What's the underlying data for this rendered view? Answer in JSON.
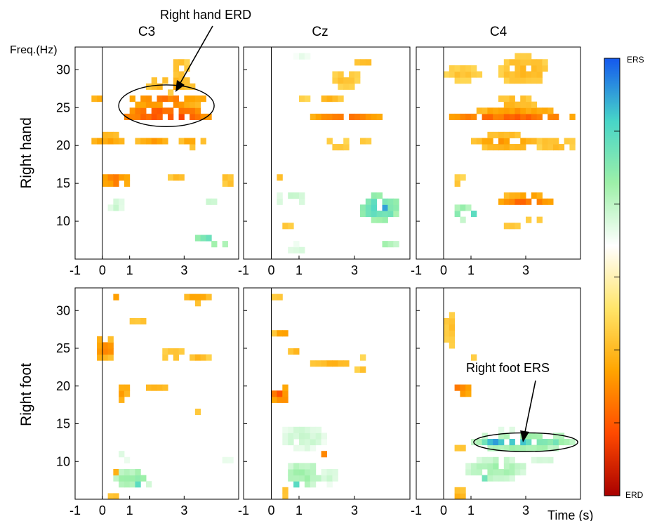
{
  "chart_data": {
    "type": "heatmap",
    "columns": [
      "C3",
      "Cz",
      "C4"
    ],
    "rows": [
      "Right hand",
      "Right foot"
    ],
    "freq_label": "Freq.(Hz)",
    "time_label": "Time (s)",
    "x_ticks": [
      "-1",
      "0",
      "1",
      "3"
    ],
    "y_ticks": [
      "30",
      "25",
      "20",
      "15",
      "10"
    ],
    "xlim": [
      -1,
      5
    ],
    "ylim": [
      5,
      33
    ],
    "event_time": 0,
    "colorbar": {
      "top_label": "ERS",
      "bottom_label": "ERD",
      "colors": [
        "#a80000",
        "#ff4a00",
        "#ffa400",
        "#ffe56a",
        "#ffffff",
        "#9df0a8",
        "#47d5c8",
        "#1458ee"
      ]
    },
    "annotations": [
      {
        "text": "Right hand ERD",
        "panel": "Right hand / C3",
        "time": 2.3,
        "freq": 25,
        "time_span": [
          0.6,
          4.1
        ],
        "freq_span": [
          22.5,
          28
        ]
      },
      {
        "text": "Right foot ERS",
        "panel": "Right foot / C4",
        "time": 3,
        "freq": 12.5,
        "time_span": [
          1.1,
          4.9
        ],
        "freq_span": [
          11.3,
          13.8
        ]
      }
    ],
    "panels": [
      {
        "row": "Right hand",
        "column": "C3",
        "blobs": [
          {
            "t": [
              -0.5,
              0.1
            ],
            "f": [
              25.5,
              26.5
            ],
            "v": -0.45
          },
          {
            "t": [
              0.7,
              4.0
            ],
            "f": [
              23,
              25
            ],
            "v": -0.72
          },
          {
            "t": [
              0.9,
              3.8
            ],
            "f": [
              25,
              27
            ],
            "v": -0.55
          },
          {
            "t": [
              1.6,
              3.4
            ],
            "f": [
              27,
              29
            ],
            "v": -0.4
          },
          {
            "t": [
              2.4,
              3.2
            ],
            "f": [
              29,
              31.5
            ],
            "v": -0.35
          },
          {
            "t": [
              -0.6,
              1.0
            ],
            "f": [
              20.3,
              21.5
            ],
            "v": -0.45
          },
          {
            "t": [
              1.2,
              2.4
            ],
            "f": [
              20,
              21.2
            ],
            "v": -0.45
          },
          {
            "t": [
              2.7,
              3.9
            ],
            "f": [
              19.8,
              21
            ],
            "v": -0.4
          },
          {
            "t": [
              0.0,
              1.0
            ],
            "f": [
              14.5,
              16.5
            ],
            "v": -0.55
          },
          {
            "t": [
              2.4,
              3.1
            ],
            "f": [
              15,
              16.5
            ],
            "v": -0.35
          },
          {
            "t": [
              4.3,
              4.9
            ],
            "f": [
              14.8,
              16
            ],
            "v": -0.35
          },
          {
            "t": [
              0.2,
              0.8
            ],
            "f": [
              11.5,
              13
            ],
            "v": 0.32
          },
          {
            "t": [
              3.7,
              4.3
            ],
            "f": [
              12,
              13.3
            ],
            "v": 0.28
          },
          {
            "t": [
              3.3,
              4.2
            ],
            "f": [
              7.7,
              8.6
            ],
            "v": 0.72
          },
          {
            "t": [
              3.9,
              4.6
            ],
            "f": [
              6.2,
              7.5
            ],
            "v": 0.45
          },
          {
            "t": [
              3.0,
              3.5
            ],
            "f": [
              4.6,
              5.4
            ],
            "v": 0.35
          }
        ]
      },
      {
        "row": "Right hand",
        "column": "Cz",
        "blobs": [
          {
            "t": [
              1.3,
              4.0
            ],
            "f": [
              23.3,
              24.4
            ],
            "v": -0.55
          },
          {
            "t": [
              1.7,
              2.6
            ],
            "f": [
              25.5,
              27
            ],
            "v": -0.35
          },
          {
            "t": [
              2.2,
              3.2
            ],
            "f": [
              27.5,
              30
            ],
            "v": -0.3
          },
          {
            "t": [
              3.0,
              3.7
            ],
            "f": [
              30.5,
              31.5
            ],
            "v": -0.35
          },
          {
            "t": [
              0.9,
              1.4
            ],
            "f": [
              26,
              27
            ],
            "v": -0.3
          },
          {
            "t": [
              1.9,
              2.8
            ],
            "f": [
              19,
              21
            ],
            "v": -0.3
          },
          {
            "t": [
              3.1,
              3.6
            ],
            "f": [
              20,
              21
            ],
            "v": -0.3
          },
          {
            "t": [
              -0.1,
              0.5
            ],
            "f": [
              15.5,
              16.5
            ],
            "v": -0.35
          },
          {
            "t": [
              0.2,
              1.2
            ],
            "f": [
              12,
              14
            ],
            "v": 0.35
          },
          {
            "t": [
              3.2,
              4.6
            ],
            "f": [
              10,
              13.5
            ],
            "v": 0.65
          },
          {
            "t": [
              3.7,
              4.3
            ],
            "f": [
              11,
              12.5
            ],
            "v": 0.85
          },
          {
            "t": [
              0.4,
              0.8
            ],
            "f": [
              9.3,
              10
            ],
            "v": -0.35
          },
          {
            "t": [
              3.9,
              4.6
            ],
            "f": [
              6.2,
              7.3
            ],
            "v": 0.45
          },
          {
            "t": [
              0.5,
              1.3
            ],
            "f": [
              6,
              7
            ],
            "v": 0.3
          },
          {
            "t": [
              0.8,
              1.4
            ],
            "f": [
              31.5,
              32.5
            ],
            "v": 0.22
          }
        ]
      },
      {
        "row": "Right hand",
        "column": "C4",
        "blobs": [
          {
            "t": [
              0.2,
              4.9
            ],
            "f": [
              23,
              24.5
            ],
            "v": -0.6
          },
          {
            "t": [
              1.0,
              4.2
            ],
            "f": [
              24,
              25.5
            ],
            "v": -0.45
          },
          {
            "t": [
              1.8,
              3.3
            ],
            "f": [
              25,
              26.5
            ],
            "v": -0.35
          },
          {
            "t": [
              2.0,
              3.9
            ],
            "f": [
              28,
              32
            ],
            "v": -0.35
          },
          {
            "t": [
              0.0,
              1.4
            ],
            "f": [
              28.5,
              30.5
            ],
            "v": -0.3
          },
          {
            "t": [
              1.0,
              3.4
            ],
            "f": [
              19.5,
              21.5
            ],
            "v": -0.45
          },
          {
            "t": [
              3.3,
              4.9
            ],
            "f": [
              19.5,
              21
            ],
            "v": -0.35
          },
          {
            "t": [
              1.9,
              4.1
            ],
            "f": [
              11.8,
              13.5
            ],
            "v": -0.6
          },
          {
            "t": [
              2.0,
              2.9
            ],
            "f": [
              13.3,
              14.2
            ],
            "v": -0.45
          },
          {
            "t": [
              0.3,
              1.1
            ],
            "f": [
              10.2,
              12.2
            ],
            "v": 0.5
          },
          {
            "t": [
              0.7,
              1.2
            ],
            "f": [
              10.5,
              11.5
            ],
            "v": 0.8
          },
          {
            "t": [
              3.0,
              3.7
            ],
            "f": [
              10,
              10.7
            ],
            "v": -0.3
          },
          {
            "t": [
              0.4,
              0.8
            ],
            "f": [
              14.5,
              16
            ],
            "v": -0.3
          },
          {
            "t": [
              2.2,
              2.8
            ],
            "f": [
              9,
              10
            ],
            "v": -0.3
          }
        ]
      },
      {
        "row": "Right foot",
        "column": "C3",
        "blobs": [
          {
            "t": [
              -0.3,
              0.5
            ],
            "f": [
              23.5,
              26.5
            ],
            "v": -0.5
          },
          {
            "t": [
              0.5,
              1.0
            ],
            "f": [
              18,
              20.5
            ],
            "v": -0.45
          },
          {
            "t": [
              2.2,
              3.0
            ],
            "f": [
              23.5,
              25
            ],
            "v": -0.35
          },
          {
            "t": [
              3.1,
              4.0
            ],
            "f": [
              23.5,
              24.5
            ],
            "v": -0.35
          },
          {
            "t": [
              1.5,
              2.4
            ],
            "f": [
              19.5,
              20.5
            ],
            "v": -0.4
          },
          {
            "t": [
              3.0,
              3.8
            ],
            "f": [
              16.5,
              17.3
            ],
            "v": -0.35
          },
          {
            "t": [
              0.9,
              1.7
            ],
            "f": [
              28,
              29
            ],
            "v": -0.3
          },
          {
            "t": [
              3.0,
              4.0
            ],
            "f": [
              31,
              32.5
            ],
            "v": -0.45
          },
          {
            "t": [
              0.2,
              0.6
            ],
            "f": [
              31.2,
              32.5
            ],
            "v": -0.45
          },
          {
            "t": [
              0.4,
              1.9
            ],
            "f": [
              6.5,
              9
            ],
            "v": 0.45
          },
          {
            "t": [
              1.1,
              1.6
            ],
            "f": [
              6.5,
              7.8
            ],
            "v": 0.75
          },
          {
            "t": [
              0.5,
              1.1
            ],
            "f": [
              10,
              11.5
            ],
            "v": 0.28
          },
          {
            "t": [
              3.5,
              4.1
            ],
            "f": [
              11.5,
              12.5
            ],
            "v": 0.3
          },
          {
            "t": [
              4.4,
              4.9
            ],
            "f": [
              10,
              11
            ],
            "v": 0.25
          },
          {
            "t": [
              0.3,
              0.7
            ],
            "f": [
              8,
              9
            ],
            "v": -0.4
          },
          {
            "t": [
              0.2,
              0.6
            ],
            "f": [
              4.5,
              5.5
            ],
            "v": -0.4
          }
        ]
      },
      {
        "row": "Right foot",
        "column": "Cz",
        "blobs": [
          {
            "t": [
              0.0,
              0.6
            ],
            "f": [
              17.5,
              20.5
            ],
            "v": -0.62
          },
          {
            "t": [
              0.1,
              0.6
            ],
            "f": [
              26.5,
              27.5
            ],
            "v": -0.45
          },
          {
            "t": [
              0.6,
              1.1
            ],
            "f": [
              24,
              25
            ],
            "v": -0.35
          },
          {
            "t": [
              1.4,
              3.4
            ],
            "f": [
              22.5,
              23.5
            ],
            "v": -0.35
          },
          {
            "t": [
              3.0,
              3.5
            ],
            "f": [
              21.5,
              24
            ],
            "v": -0.3
          },
          {
            "t": [
              1.7,
              2.1
            ],
            "f": [
              10.5,
              11.3
            ],
            "v": -0.5
          },
          {
            "t": [
              0.3,
              2.0
            ],
            "f": [
              11.5,
              15
            ],
            "v": 0.3
          },
          {
            "t": [
              0.5,
              1.9
            ],
            "f": [
              6.5,
              10
            ],
            "v": 0.42
          },
          {
            "t": [
              0.8,
              1.3
            ],
            "f": [
              6.5,
              7.7
            ],
            "v": 0.72
          },
          {
            "t": [
              1.7,
              2.5
            ],
            "f": [
              7,
              9
            ],
            "v": 0.3
          },
          {
            "t": [
              0.0,
              0.5
            ],
            "f": [
              31,
              32.5
            ],
            "v": -0.3
          },
          {
            "t": [
              0.3,
              0.7
            ],
            "f": [
              5.2,
              6.3
            ],
            "v": -0.35
          }
        ]
      },
      {
        "row": "Right foot",
        "column": "C4",
        "blobs": [
          {
            "t": [
              0.2,
              1.0
            ],
            "f": [
              18.5,
              20.5
            ],
            "v": -0.55
          },
          {
            "t": [
              0.0,
              0.5
            ],
            "f": [
              25,
              30
            ],
            "v": -0.3
          },
          {
            "t": [
              0.8,
              1.2
            ],
            "f": [
              23,
              24.5
            ],
            "v": -0.3
          },
          {
            "t": [
              1.0,
              4.9
            ],
            "f": [
              11.5,
              13.8
            ],
            "v": 0.5
          },
          {
            "t": [
              1.3,
              3.3
            ],
            "f": [
              12,
              13.3
            ],
            "v": 0.82
          },
          {
            "t": [
              3.3,
              4.5
            ],
            "f": [
              12,
              13.3
            ],
            "v": 0.55
          },
          {
            "t": [
              0.8,
              3.0
            ],
            "f": [
              7.5,
              10.5
            ],
            "v": 0.4
          },
          {
            "t": [
              1.1,
              1.7
            ],
            "f": [
              7.3,
              8.5
            ],
            "v": 0.68
          },
          {
            "t": [
              3.2,
              4.1
            ],
            "f": [
              9.5,
              10.5
            ],
            "v": 0.3
          },
          {
            "t": [
              1.9,
              2.7
            ],
            "f": [
              14,
              15
            ],
            "v": 0.28
          },
          {
            "t": [
              0.4,
              0.9
            ],
            "f": [
              11,
              12
            ],
            "v": -0.35
          },
          {
            "t": [
              0.4,
              0.8
            ],
            "f": [
              4.5,
              6.5
            ],
            "v": -0.4
          }
        ]
      }
    ]
  }
}
